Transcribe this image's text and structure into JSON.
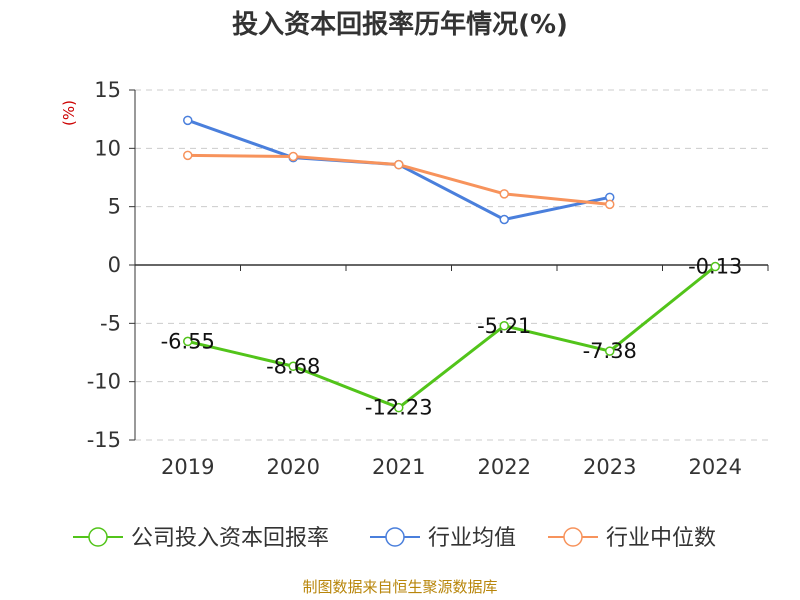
{
  "chart_data": {
    "type": "line",
    "title": "投入资本回报率历年情况(%)",
    "ylabel": "(%)",
    "xlabel": "",
    "categories": [
      "2019",
      "2020",
      "2021",
      "2022",
      "2023",
      "2024"
    ],
    "ylim": [
      -15,
      15
    ],
    "yticks": [
      15,
      10,
      5,
      0,
      -5,
      -10,
      -15
    ],
    "grid": true,
    "legend_position": "bottom",
    "series": [
      {
        "name": "公司投入资本回报率",
        "color": "#52c41a",
        "values": [
          -6.55,
          -8.68,
          -12.23,
          -5.21,
          -7.38,
          -0.13
        ],
        "labels": [
          "-6.55",
          "-8.68",
          "-12.23",
          "-5.21",
          "-7.38",
          "-0.13"
        ]
      },
      {
        "name": "行业均值",
        "color": "#4a7fdc",
        "values": [
          12.4,
          9.2,
          8.6,
          3.9,
          5.8,
          null
        ]
      },
      {
        "name": "行业中位数",
        "color": "#f7935c",
        "values": [
          9.4,
          9.3,
          8.6,
          6.1,
          5.2,
          null
        ]
      }
    ]
  },
  "source": "制图数据来自恒生聚源数据库"
}
